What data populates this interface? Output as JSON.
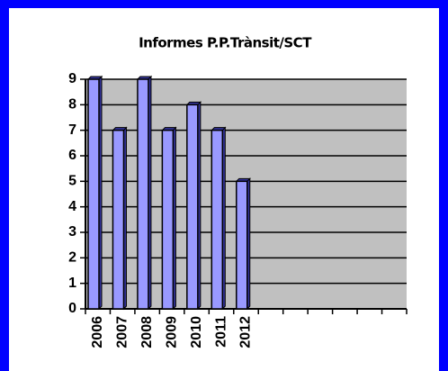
{
  "chart_data": {
    "type": "bar",
    "title": "Informes P.P.Trànsit/SCT",
    "categories": [
      "2006",
      "2007",
      "2008",
      "2009",
      "2010",
      "2011",
      "2012",
      null,
      null,
      null,
      null,
      null,
      null
    ],
    "values": [
      9,
      7,
      9,
      7,
      8,
      7,
      5,
      null,
      null,
      null,
      null,
      null,
      null
    ],
    "color": "#9999ff",
    "ylim": [
      0,
      9
    ],
    "yticks": [
      0,
      1,
      2,
      3,
      4,
      5,
      6,
      7,
      8,
      9
    ],
    "grid": true
  }
}
